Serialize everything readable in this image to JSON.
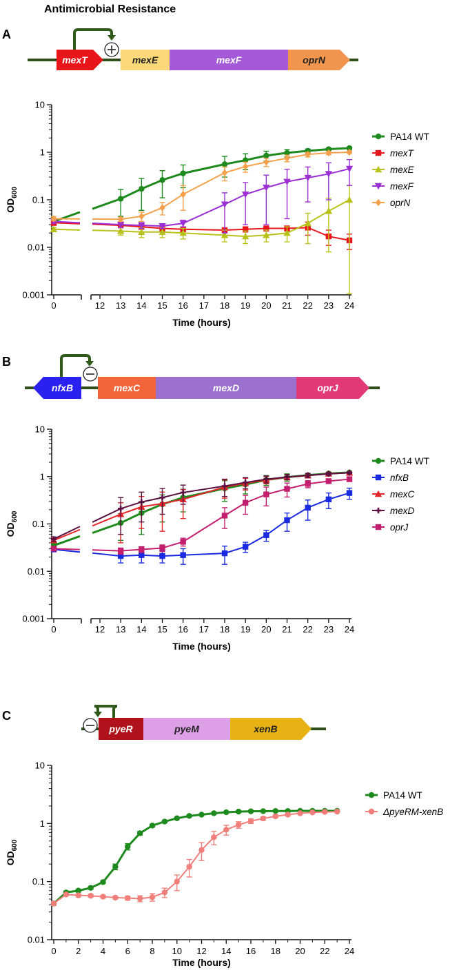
{
  "title": "Antimicrobial Resistance",
  "panels": [
    {
      "label": "A",
      "operon": {
        "regulation_sign": "+",
        "genes": [
          {
            "name": "mexT",
            "color": "#e8151b",
            "text_color": "#ffffff",
            "direction": "right"
          },
          {
            "name": "mexE",
            "color": "#fbd978",
            "text_color": "#222222",
            "direction": "none"
          },
          {
            "name": "mexF",
            "color": "#a55bd8",
            "text_color": "#ffffff",
            "direction": "none"
          },
          {
            "name": "oprN",
            "color": "#f0944e",
            "text_color": "#222222",
            "direction": "right"
          }
        ]
      }
    },
    {
      "label": "B",
      "operon": {
        "regulation_sign": "−",
        "genes": [
          {
            "name": "nfxB",
            "color": "#2a20f0",
            "text_color": "#ffffff",
            "direction": "left"
          },
          {
            "name": "mexC",
            "color": "#f2643a",
            "text_color": "#ffffff",
            "direction": "none"
          },
          {
            "name": "mexD",
            "color": "#9b6fce",
            "text_color": "#ffffff",
            "direction": "none"
          },
          {
            "name": "oprJ",
            "color": "#e23a78",
            "text_color": "#ffffff",
            "direction": "right"
          }
        ]
      }
    },
    {
      "label": "C",
      "operon": {
        "regulation_sign": "−",
        "genes": [
          {
            "name": "pyeR",
            "color": "#b0121b",
            "text_color": "#ffffff",
            "direction": "none"
          },
          {
            "name": "pyeM",
            "color": "#dda0e6",
            "text_color": "#222222",
            "direction": "none"
          },
          {
            "name": "xenB",
            "color": "#e9b214",
            "text_color": "#222222",
            "direction": "right"
          }
        ]
      }
    }
  ],
  "chart_data": [
    {
      "type": "line",
      "panel": "A",
      "ylabel": "OD600",
      "ylabel_main": "OD",
      "ylabel_sub": "600",
      "xlabel": "Time (hours)",
      "yscale": "log",
      "ylim": [
        0.001,
        10
      ],
      "yticks": [
        "0.001",
        "0.01",
        "0.1",
        "1",
        "10"
      ],
      "xticks": [
        "0",
        "12",
        "13",
        "14",
        "15",
        "16",
        "17",
        "18",
        "19",
        "20",
        "21",
        "22",
        "23",
        "24"
      ],
      "broken_axis": true,
      "series": [
        {
          "name": "PA14 WT",
          "italic": false,
          "color": "#1e8a1e",
          "marker": "circle",
          "x": [
            0,
            13,
            14,
            15,
            16,
            18,
            19,
            20,
            21,
            22,
            23,
            24
          ],
          "y": [
            0.035,
            0.105,
            0.17,
            0.26,
            0.36,
            0.56,
            0.68,
            0.85,
            0.97,
            1.07,
            1.16,
            1.22
          ],
          "err": [
            0.004,
            0.06,
            0.11,
            0.15,
            0.18,
            0.26,
            0.25,
            0.2,
            0.17,
            0.1,
            0.08,
            0.06
          ]
        },
        {
          "name": "mexT",
          "italic": true,
          "color": "#e8151b",
          "marker": "square",
          "x": [
            0,
            13,
            14,
            15,
            16,
            18,
            19,
            20,
            21,
            22,
            23,
            24
          ],
          "y": [
            0.033,
            0.029,
            0.027,
            0.025,
            0.024,
            0.023,
            0.024,
            0.025,
            0.025,
            0.026,
            0.017,
            0.014
          ],
          "err": [
            0.004,
            0.003,
            0.003,
            0.003,
            0.002,
            0.002,
            0.003,
            0.003,
            0.003,
            0.008,
            0.006,
            0.005
          ]
        },
        {
          "name": "mexE",
          "italic": true,
          "color": "#b8c21a",
          "marker": "triangle-up",
          "x": [
            0,
            13,
            14,
            15,
            16,
            18,
            19,
            20,
            21,
            22,
            23,
            24
          ],
          "y": [
            0.024,
            0.022,
            0.021,
            0.021,
            0.02,
            0.018,
            0.017,
            0.018,
            0.02,
            0.032,
            0.058,
            0.1
          ],
          "err": [
            0.002,
            0.004,
            0.005,
            0.005,
            0.005,
            0.005,
            0.005,
            0.005,
            0.007,
            0.02,
            0.05,
            0.1
          ]
        },
        {
          "name": "mexF",
          "italic": true,
          "color": "#9b2fd4",
          "marker": "triangle-down",
          "x": [
            0,
            13,
            14,
            15,
            16,
            18,
            19,
            20,
            21,
            22,
            23,
            24
          ],
          "y": [
            0.035,
            0.03,
            0.029,
            0.028,
            0.032,
            0.08,
            0.13,
            0.18,
            0.24,
            0.29,
            0.35,
            0.45
          ],
          "err": [
            0.003,
            0.004,
            0.004,
            0.003,
            0.005,
            0.06,
            0.1,
            0.15,
            0.2,
            0.2,
            0.25,
            0.25
          ]
        },
        {
          "name": "oprN",
          "italic": true,
          "color": "#f5a04a",
          "marker": "diamond",
          "x": [
            0,
            13,
            14,
            15,
            16,
            18,
            19,
            20,
            21,
            22,
            23,
            24
          ],
          "y": [
            0.04,
            0.039,
            0.045,
            0.068,
            0.13,
            0.37,
            0.5,
            0.62,
            0.75,
            0.9,
            0.97,
            1.0
          ],
          "err": [
            0.004,
            0.004,
            0.01,
            0.02,
            0.07,
            0.12,
            0.12,
            0.12,
            0.12,
            0.1,
            0.08,
            0.06
          ]
        }
      ]
    },
    {
      "type": "line",
      "panel": "B",
      "ylabel": "OD600",
      "ylabel_main": "OD",
      "ylabel_sub": "600",
      "xlabel": "Time (hours)",
      "yscale": "log",
      "ylim": [
        0.001,
        10
      ],
      "yticks": [
        "0.001",
        "0.01",
        "0.1",
        "1",
        "10"
      ],
      "xticks": [
        "0",
        "12",
        "13",
        "14",
        "15",
        "16",
        "17",
        "18",
        "19",
        "20",
        "21",
        "22",
        "23",
        "24"
      ],
      "broken_axis": true,
      "series": [
        {
          "name": "PA14 WT",
          "italic": false,
          "color": "#1e8a1e",
          "marker": "circle",
          "x": [
            0,
            13,
            14,
            15,
            16,
            18,
            19,
            20,
            21,
            22,
            23,
            24
          ],
          "y": [
            0.035,
            0.105,
            0.17,
            0.26,
            0.36,
            0.56,
            0.68,
            0.85,
            0.97,
            1.07,
            1.16,
            1.22
          ],
          "err": [
            0.004,
            0.06,
            0.11,
            0.15,
            0.18,
            0.26,
            0.25,
            0.2,
            0.17,
            0.1,
            0.08,
            0.06
          ]
        },
        {
          "name": "nfxB",
          "italic": true,
          "color": "#1a2ae0",
          "marker": "square",
          "x": [
            0,
            13,
            14,
            15,
            16,
            18,
            19,
            20,
            21,
            22,
            23,
            24
          ],
          "y": [
            0.029,
            0.021,
            0.022,
            0.021,
            0.022,
            0.024,
            0.033,
            0.058,
            0.12,
            0.22,
            0.33,
            0.45
          ],
          "err": [
            0.003,
            0.006,
            0.007,
            0.006,
            0.008,
            0.01,
            0.008,
            0.015,
            0.05,
            0.1,
            0.12,
            0.12
          ]
        },
        {
          "name": "mexC",
          "italic": true,
          "color": "#e3252a",
          "marker": "triangle-up",
          "x": [
            0,
            13,
            14,
            15,
            16,
            18,
            19,
            20,
            21,
            22,
            23,
            24
          ],
          "y": [
            0.045,
            0.16,
            0.23,
            0.27,
            0.33,
            0.6,
            0.72,
            0.85,
            0.97,
            1.05,
            1.15,
            1.2
          ],
          "err": [
            0.005,
            0.12,
            0.15,
            0.2,
            0.2,
            0.25,
            0.2,
            0.15,
            0.12,
            0.1,
            0.08,
            0.06
          ]
        },
        {
          "name": "mexD",
          "italic": true,
          "color": "#5a1040",
          "marker": "plus",
          "x": [
            0,
            13,
            14,
            15,
            16,
            18,
            19,
            20,
            21,
            22,
            23,
            24
          ],
          "y": [
            0.048,
            0.21,
            0.29,
            0.36,
            0.46,
            0.63,
            0.75,
            0.88,
            0.98,
            1.06,
            1.14,
            1.2
          ],
          "err": [
            0.005,
            0.15,
            0.18,
            0.2,
            0.2,
            0.25,
            0.2,
            0.15,
            0.12,
            0.1,
            0.08,
            0.06
          ]
        },
        {
          "name": "oprJ",
          "italic": true,
          "color": "#c41e6e",
          "marker": "square",
          "x": [
            0,
            13,
            14,
            15,
            16,
            18,
            19,
            20,
            21,
            22,
            23,
            24
          ],
          "y": [
            0.03,
            0.027,
            0.029,
            0.031,
            0.042,
            0.15,
            0.28,
            0.42,
            0.55,
            0.7,
            0.8,
            0.88
          ],
          "err": [
            0.003,
            0.004,
            0.004,
            0.005,
            0.008,
            0.07,
            0.12,
            0.18,
            0.18,
            0.12,
            0.08,
            0.06
          ]
        }
      ]
    },
    {
      "type": "line",
      "panel": "C",
      "ylabel": "OD600",
      "ylabel_main": "OD",
      "ylabel_sub": "600",
      "xlabel": "Time (hours)",
      "yscale": "log",
      "ylim": [
        0.01,
        10
      ],
      "yticks": [
        "0.01",
        "0.1",
        "1",
        "10"
      ],
      "xticks": [
        "0",
        "2",
        "4",
        "6",
        "8",
        "10",
        "12",
        "14",
        "16",
        "18",
        "20",
        "22",
        "24"
      ],
      "broken_axis": false,
      "series": [
        {
          "name": "PA14 WT",
          "italic": false,
          "color": "#1e8a1e",
          "marker": "circle",
          "x": [
            0,
            1,
            2,
            3,
            4,
            5,
            6,
            7,
            8,
            9,
            10,
            11,
            12,
            13,
            14,
            15,
            16,
            17,
            18,
            19,
            20,
            21,
            22,
            23
          ],
          "y": [
            0.042,
            0.065,
            0.07,
            0.078,
            0.098,
            0.18,
            0.4,
            0.68,
            0.92,
            1.08,
            1.23,
            1.35,
            1.42,
            1.5,
            1.56,
            1.6,
            1.62,
            1.63,
            1.64,
            1.64,
            1.65,
            1.65,
            1.65,
            1.65
          ],
          "err": [
            0.003,
            0.004,
            0.004,
            0.004,
            0.005,
            0.02,
            0.05,
            0.05,
            0.05,
            0.05,
            0.05,
            0.05,
            0.05,
            0.05,
            0.05,
            0.05,
            0.05,
            0.05,
            0.05,
            0.05,
            0.05,
            0.05,
            0.05,
            0.05
          ]
        },
        {
          "name": "ΔpyeRM-xenB",
          "italic": true,
          "color": "#f07f7b",
          "marker": "circle",
          "x": [
            0,
            1,
            2,
            3,
            4,
            5,
            6,
            7,
            8,
            9,
            10,
            11,
            12,
            13,
            14,
            15,
            16,
            17,
            18,
            19,
            20,
            21,
            22,
            23
          ],
          "y": [
            0.042,
            0.06,
            0.058,
            0.057,
            0.055,
            0.053,
            0.052,
            0.051,
            0.054,
            0.065,
            0.1,
            0.18,
            0.35,
            0.58,
            0.78,
            0.95,
            1.1,
            1.22,
            1.33,
            1.42,
            1.5,
            1.55,
            1.58,
            1.6
          ],
          "err": [
            0.003,
            0.003,
            0.003,
            0.003,
            0.003,
            0.003,
            0.004,
            0.006,
            0.008,
            0.012,
            0.03,
            0.06,
            0.12,
            0.15,
            0.15,
            0.12,
            0.1,
            0.08,
            0.07,
            0.06,
            0.06,
            0.05,
            0.05,
            0.05
          ]
        }
      ]
    }
  ]
}
